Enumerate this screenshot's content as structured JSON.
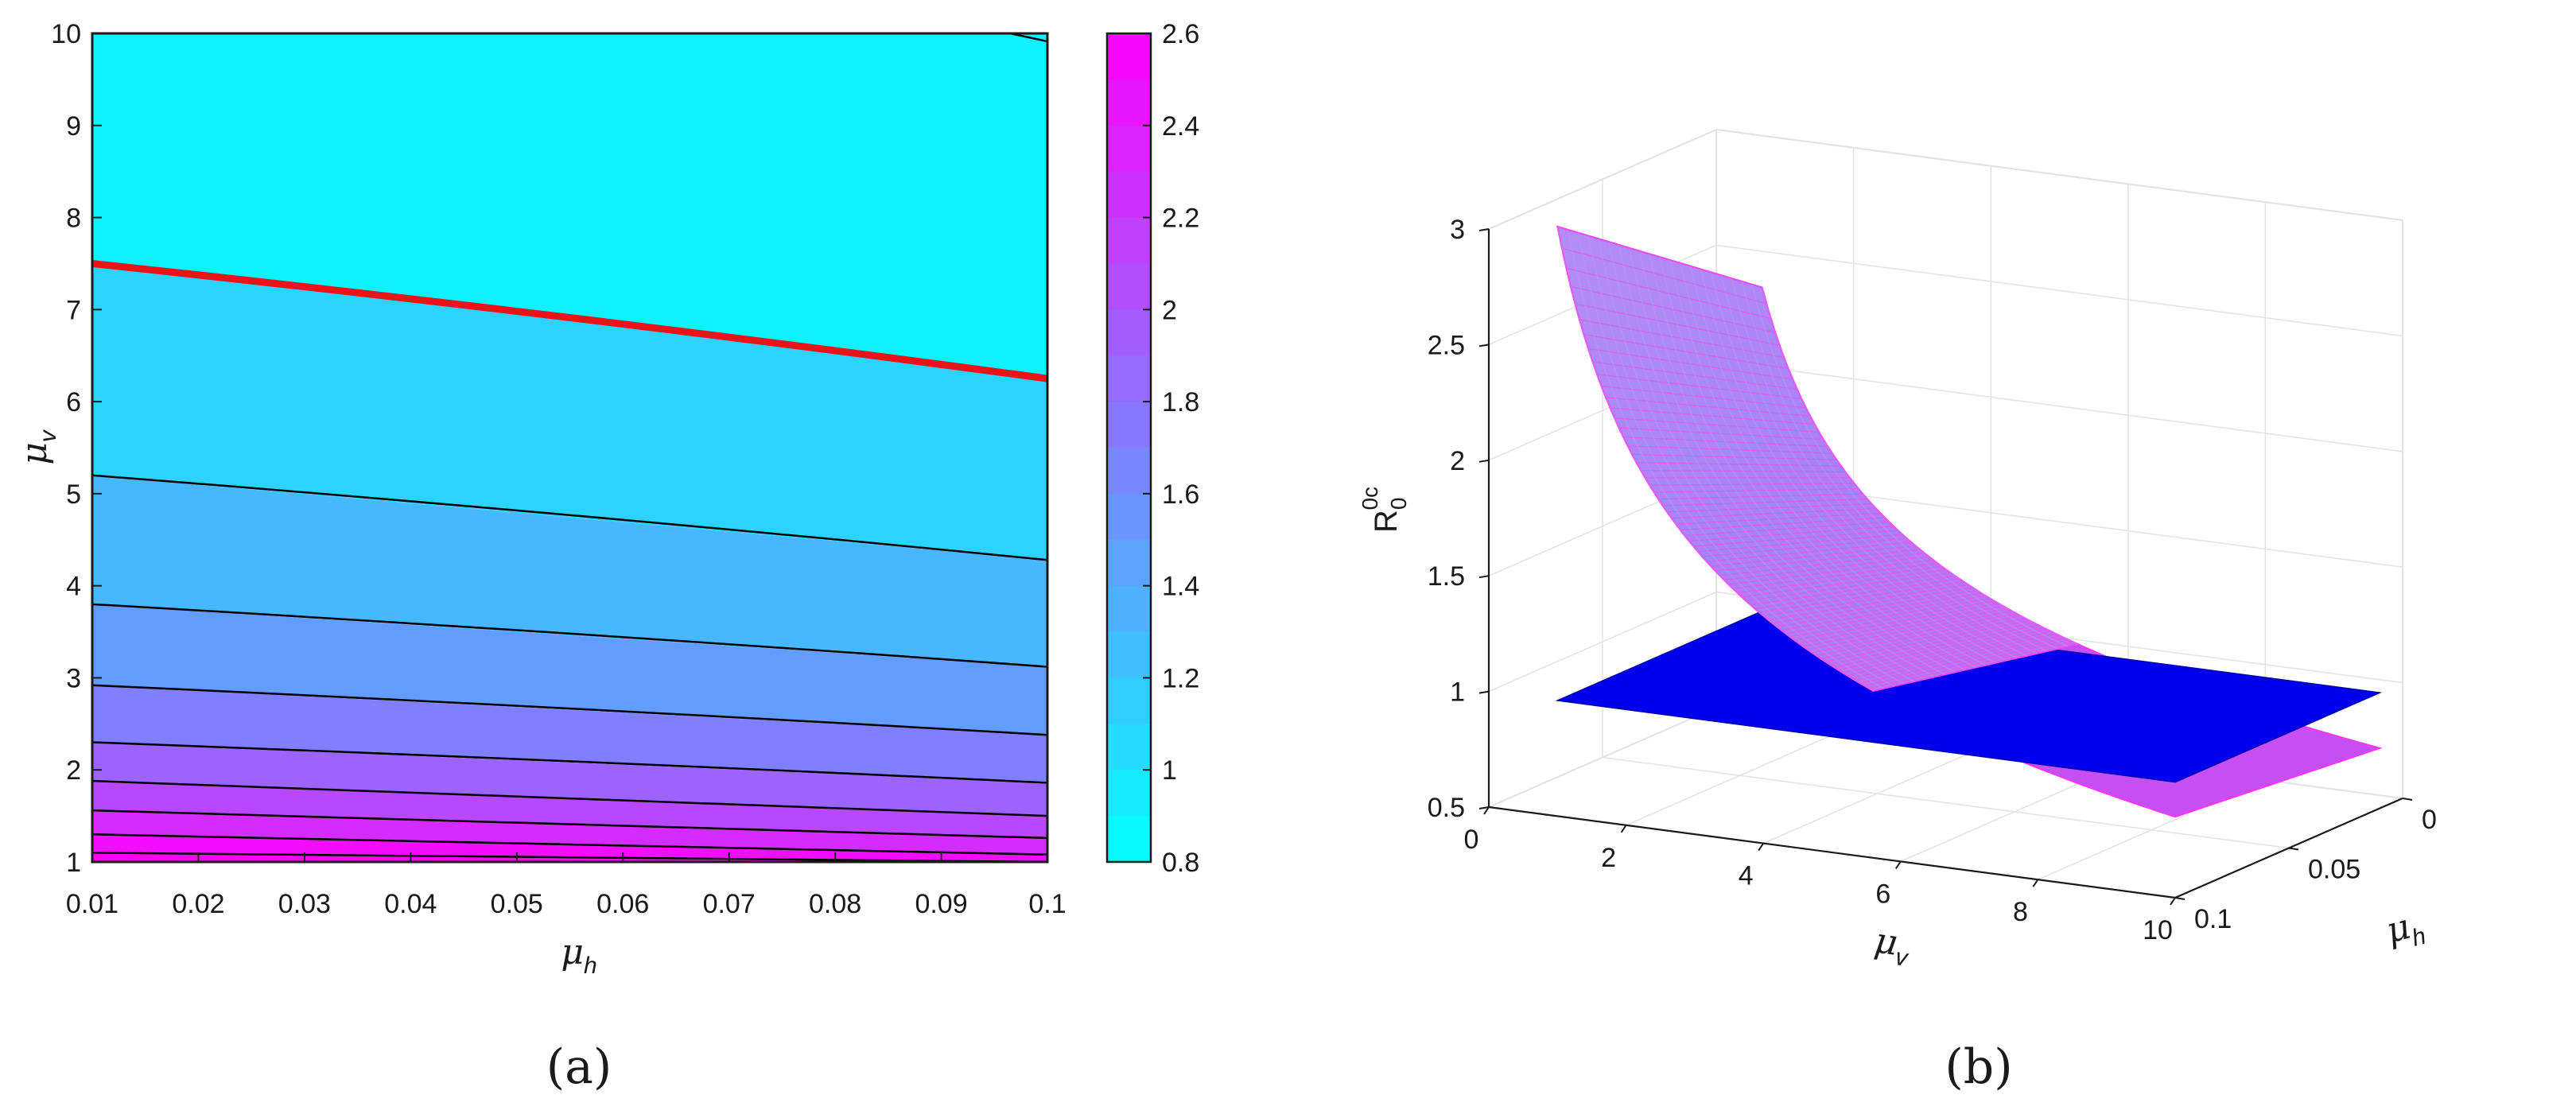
{
  "panel_labels": {
    "a": "(a)",
    "b": "(b)"
  },
  "colors": {
    "low": "#00ffff",
    "high": "#ff00ff",
    "threshold_line": "#e8141a",
    "plane": "#0000ee",
    "surface_edge": "#ff33ff"
  },
  "chart_data": [
    {
      "type": "contour",
      "panel": "(a)",
      "xlabel": {
        "symbol": "μ",
        "sub": "h"
      },
      "ylabel": {
        "symbol": "μ",
        "sub": "v"
      },
      "xlim": [
        0.01,
        0.1
      ],
      "ylim": [
        1,
        10
      ],
      "xticks": [
        "0.01",
        "0.02",
        "0.03",
        "0.04",
        "0.05",
        "0.06",
        "0.07",
        "0.08",
        "0.09",
        "0.1"
      ],
      "yticks": [
        "1",
        "2",
        "3",
        "4",
        "5",
        "6",
        "7",
        "8",
        "9",
        "10"
      ],
      "colorbar": {
        "min": 0.8,
        "max": 2.6,
        "ticks": [
          "0.8",
          "1",
          "1.2",
          "1.4",
          "1.6",
          "1.8",
          "2",
          "2.2",
          "2.4",
          "2.6"
        ],
        "colormap": "cool"
      },
      "contour_lines": [
        {
          "level": 1.0,
          "threshold": true,
          "y_at_xmin": 7.5,
          "y_at_xmax": 6.25
        },
        {
          "level": 1.2,
          "y_at_xmin": 5.2,
          "y_at_xmax": 4.28
        },
        {
          "level": 1.4,
          "y_at_xmin": 3.8,
          "y_at_xmax": 3.12
        },
        {
          "level": 1.6,
          "y_at_xmin": 2.92,
          "y_at_xmax": 2.38
        },
        {
          "level": 1.8,
          "y_at_xmin": 2.3,
          "y_at_xmax": 1.86
        },
        {
          "level": 2.0,
          "y_at_xmin": 1.88,
          "y_at_xmax": 1.5
        },
        {
          "level": 2.2,
          "y_at_xmin": 1.56,
          "y_at_xmax": 1.26
        },
        {
          "level": 2.4,
          "y_at_xmin": 1.3,
          "y_at_xmax": 1.08
        },
        {
          "level": 2.6,
          "y_at_xmin": 1.1,
          "y_at_xmax": 1.0
        }
      ]
    },
    {
      "type": "surface3d",
      "panel": "(b)",
      "xlabel": {
        "symbol": "μ",
        "sub": "v"
      },
      "ylabel": {
        "symbol": "μ",
        "sub": "h"
      },
      "zlabel": {
        "base": "R",
        "sub": "0",
        "sup": "0c"
      },
      "xlim": [
        0,
        10
      ],
      "ylim": [
        0,
        0.1
      ],
      "zlim": [
        0.5,
        3
      ],
      "xticks": [
        "0",
        "2",
        "4",
        "6",
        "8",
        "10"
      ],
      "yticks": [
        "0",
        "0.05",
        "0.1"
      ],
      "zticks": [
        "0.5",
        "1",
        "1.5",
        "2",
        "2.5",
        "3"
      ],
      "plane_level": 1,
      "surface": {
        "x_range": [
          1,
          10
        ],
        "y_range": [
          0.01,
          0.1
        ],
        "z_corners": {
          "x1_y0.01": 2.4,
          "x1_y0.1": 3.05,
          "x10_y0.01": 0.76,
          "x10_y0.1": 0.85
        }
      }
    }
  ]
}
